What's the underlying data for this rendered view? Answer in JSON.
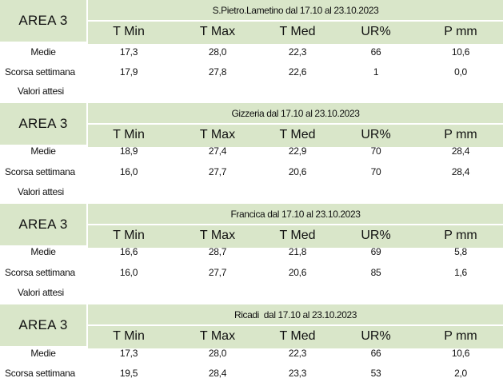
{
  "column_headers": [
    "T Min",
    "T Max",
    "T Med",
    "UR%",
    "P mm"
  ],
  "blocks": [
    {
      "area": "AREA 3",
      "caption": "S.Pietro.Lametino dal 17.10 al 23.10.2023",
      "rows": [
        {
          "label": "Medie",
          "values": [
            "17,3",
            "28,0",
            "22,3",
            "66",
            "10,6"
          ]
        },
        {
          "label": "Scorsa settimana",
          "values": [
            "17,9",
            "27,8",
            "22,6",
            "1",
            "0,0"
          ]
        },
        {
          "label": "Valori attesi",
          "values": []
        }
      ]
    },
    {
      "area": "AREA 3",
      "caption": "Gizzeria dal 17.10 al 23.10.2023",
      "rows": [
        {
          "label": "Medie",
          "values": [
            "18,9",
            "27,4",
            "22,9",
            "70",
            "28,4"
          ]
        },
        {
          "label": "Scorsa settimana",
          "values": [
            "16,0",
            "27,7",
            "20,6",
            "70",
            "28,4"
          ]
        },
        {
          "label": "Valori attesi",
          "values": []
        }
      ]
    },
    {
      "area": "AREA 3",
      "caption": "Francica dal 17.10 al 23.10.2023",
      "rows": [
        {
          "label": "Medie",
          "values": [
            "16,6",
            "28,7",
            "21,8",
            "69",
            "5,8"
          ]
        },
        {
          "label": "Scorsa settimana",
          "values": [
            "16,0",
            "27,7",
            "20,6",
            "85",
            "1,6"
          ]
        },
        {
          "label": "Valori attesi",
          "values": []
        }
      ]
    },
    {
      "area": "AREA 3",
      "caption": "Ricadi  dal 17.10 al 23.10.2023",
      "rows": [
        {
          "label": "Medie",
          "values": [
            "17,3",
            "28,0",
            "22,3",
            "66",
            "10,6"
          ]
        },
        {
          "label": "Scorsa settimana",
          "values": [
            "19,5",
            "28,4",
            "23,3",
            "53",
            "2,0"
          ]
        }
      ]
    }
  ]
}
